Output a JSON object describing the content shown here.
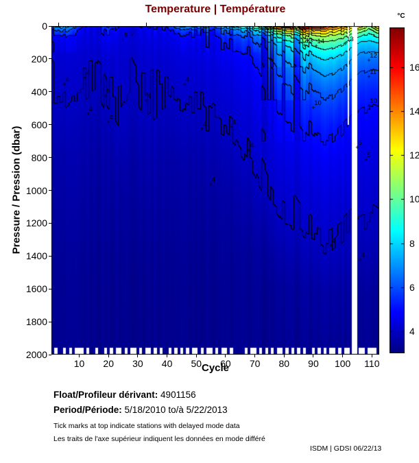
{
  "title": "Temperature | Température",
  "colors": {
    "title": "#7a0000",
    "text": "#000000",
    "missing": "#ffffff"
  },
  "colorbar": {
    "unit_label": "°C",
    "ticks": [
      4,
      6,
      8,
      10,
      12,
      14,
      16
    ],
    "cmin": 3.0,
    "cmax": 17.8
  },
  "axes": {
    "x": {
      "label": "Cycle",
      "ticks": [
        10,
        20,
        30,
        40,
        50,
        60,
        70,
        80,
        90,
        100,
        110
      ]
    },
    "y": {
      "label": "Pressure / Pression (dbar)",
      "ticks": [
        0,
        200,
        400,
        600,
        800,
        1000,
        1200,
        1400,
        1600,
        1800,
        2000
      ]
    }
  },
  "footer": {
    "float_label": "Float/Profileur dérivant:",
    "float_value": "4901156",
    "period_label": "Period/Période:",
    "period_value": "5/18/2010  to/à  5/22/2013",
    "note_en": "Tick marks at top indicate stations with delayed mode data",
    "note_fr": "Les traits de l'axe supérieur indiquent les données en mode différé",
    "credit": "ISDM | GDSI  06/22/13"
  },
  "chart_data": {
    "type": "heatmap",
    "title": "Temperature | Température",
    "xlabel": "Cycle",
    "ylabel": "Pressure / Pression (dbar)",
    "x_range": [
      1,
      112
    ],
    "y_range": [
      0,
      2000
    ],
    "color_range": [
      3.0,
      17.8
    ],
    "colormap": "jet",
    "colorbar_unit": "°C",
    "contour_levels": [
      4,
      5,
      6,
      7,
      8,
      9,
      10,
      11,
      12,
      13,
      14,
      15,
      16
    ],
    "grid": {
      "cycles": [
        1,
        4,
        8,
        12,
        16,
        20,
        24,
        28,
        32,
        36,
        40,
        44,
        48,
        52,
        56,
        60,
        64,
        68,
        72,
        76,
        80,
        84,
        88,
        92,
        96,
        100,
        102,
        106,
        109,
        112
      ],
      "pressures": [
        0,
        25,
        60,
        100,
        150,
        200,
        300,
        400,
        500,
        600,
        800,
        1000,
        1200,
        1400,
        1600,
        2000
      ],
      "temperatures": [
        [
          6.5,
          5.5,
          4.6,
          4.3,
          4.2,
          4.1,
          4.05,
          4.0,
          3.9,
          3.8,
          3.6,
          3.5,
          3.4,
          3.3,
          3.25,
          3.2
        ],
        [
          7.5,
          6.0,
          4.8,
          4.4,
          4.25,
          4.15,
          4.05,
          4.0,
          3.9,
          3.8,
          3.6,
          3.5,
          3.4,
          3.3,
          3.25,
          3.2
        ],
        [
          6.0,
          5.0,
          4.5,
          4.35,
          4.2,
          4.1,
          4.0,
          3.95,
          3.85,
          3.75,
          3.6,
          3.5,
          3.4,
          3.3,
          3.25,
          3.2
        ],
        [
          4.8,
          4.5,
          4.4,
          4.3,
          4.2,
          4.1,
          4.05,
          3.95,
          3.85,
          3.75,
          3.6,
          3.5,
          3.4,
          3.3,
          3.25,
          3.2
        ],
        [
          4.6,
          4.4,
          4.35,
          4.25,
          4.15,
          4.1,
          4.0,
          3.9,
          3.8,
          3.7,
          3.55,
          3.45,
          3.38,
          3.3,
          3.25,
          3.2
        ],
        [
          6.2,
          5.4,
          4.9,
          4.6,
          4.4,
          4.2,
          4.1,
          4.05,
          3.95,
          3.8,
          3.6,
          3.5,
          3.4,
          3.3,
          3.25,
          3.2
        ],
        [
          4.7,
          4.45,
          4.35,
          4.3,
          4.2,
          4.15,
          4.1,
          4.05,
          4.0,
          3.95,
          3.7,
          3.5,
          3.4,
          3.3,
          3.25,
          3.2
        ],
        [
          4.6,
          4.4,
          4.3,
          4.25,
          4.2,
          4.1,
          4.05,
          4.0,
          3.9,
          3.8,
          3.6,
          3.5,
          3.4,
          3.3,
          3.25,
          3.2
        ],
        [
          5.2,
          4.7,
          4.5,
          4.4,
          4.3,
          4.2,
          4.1,
          4.05,
          4.0,
          3.9,
          3.7,
          3.55,
          3.42,
          3.32,
          3.25,
          3.2
        ],
        [
          4.9,
          4.6,
          4.45,
          4.35,
          4.25,
          4.15,
          4.08,
          4.02,
          3.95,
          3.85,
          3.65,
          3.5,
          3.4,
          3.3,
          3.25,
          3.2
        ],
        [
          5.5,
          4.8,
          4.5,
          4.4,
          4.3,
          4.2,
          4.1,
          4.0,
          3.9,
          3.8,
          3.6,
          3.5,
          3.4,
          3.3,
          3.25,
          3.2
        ],
        [
          7.0,
          5.5,
          4.8,
          4.55,
          4.4,
          4.3,
          4.15,
          4.05,
          3.95,
          3.85,
          3.62,
          3.5,
          3.4,
          3.3,
          3.25,
          3.2
        ],
        [
          7.5,
          5.8,
          5.0,
          4.7,
          4.5,
          4.35,
          4.2,
          4.1,
          4.0,
          3.9,
          3.65,
          3.5,
          3.4,
          3.3,
          3.25,
          3.2
        ],
        [
          7.0,
          5.6,
          5.0,
          4.7,
          4.55,
          4.4,
          4.25,
          4.12,
          4.02,
          3.92,
          3.7,
          3.52,
          3.4,
          3.3,
          3.25,
          3.2
        ],
        [
          6.5,
          5.5,
          5.0,
          4.75,
          4.6,
          4.45,
          4.3,
          4.18,
          4.08,
          3.95,
          3.72,
          3.55,
          3.42,
          3.3,
          3.25,
          3.2
        ],
        [
          7.5,
          6.0,
          5.3,
          5.0,
          4.7,
          4.55,
          4.35,
          4.22,
          4.1,
          4.0,
          3.75,
          3.55,
          3.42,
          3.32,
          3.25,
          3.2
        ],
        [
          8.5,
          6.5,
          5.6,
          5.2,
          4.9,
          4.7,
          4.45,
          4.3,
          4.18,
          4.08,
          3.85,
          3.6,
          3.45,
          3.32,
          3.25,
          3.2
        ],
        [
          9.0,
          7.0,
          6.0,
          5.5,
          5.1,
          4.85,
          4.6,
          4.45,
          4.3,
          4.18,
          3.98,
          3.7,
          3.5,
          3.35,
          3.27,
          3.2
        ],
        [
          10.5,
          8.0,
          6.6,
          6.0,
          5.5,
          5.2,
          4.9,
          4.65,
          4.5,
          4.35,
          4.1,
          3.9,
          3.6,
          3.4,
          3.28,
          3.2
        ],
        [
          13.5,
          9.5,
          7.5,
          6.5,
          6.0,
          5.6,
          5.2,
          4.9,
          4.7,
          4.5,
          4.25,
          4.05,
          3.8,
          3.5,
          3.3,
          3.2
        ],
        [
          14.5,
          11.0,
          8.5,
          7.2,
          6.5,
          6.0,
          5.5,
          5.1,
          4.85,
          4.65,
          4.35,
          4.12,
          3.9,
          3.6,
          3.35,
          3.22
        ],
        [
          15.0,
          11.5,
          9.0,
          7.8,
          7.0,
          6.4,
          5.8,
          5.3,
          5.0,
          4.75,
          4.4,
          4.15,
          3.95,
          3.65,
          3.4,
          3.22
        ],
        [
          16.8,
          13.0,
          10.5,
          9.0,
          8.0,
          7.2,
          6.3,
          5.7,
          5.3,
          5.0,
          4.55,
          4.25,
          4.05,
          3.75,
          3.45,
          3.25
        ],
        [
          16.5,
          13.5,
          11.2,
          9.8,
          8.8,
          8.0,
          6.9,
          6.1,
          5.6,
          5.2,
          4.7,
          4.35,
          4.1,
          3.85,
          3.5,
          3.25
        ],
        [
          14.8,
          12.8,
          11.0,
          9.8,
          8.8,
          8.0,
          7.0,
          6.2,
          5.7,
          5.25,
          4.7,
          4.35,
          4.12,
          3.9,
          3.55,
          3.27
        ],
        [
          14.2,
          12.2,
          10.5,
          9.3,
          8.4,
          7.6,
          6.6,
          5.9,
          5.4,
          5.05,
          4.6,
          4.3,
          4.05,
          3.8,
          3.5,
          3.25
        ],
        [
          13.8,
          11.8,
          10.0,
          8.9,
          8.0,
          7.3,
          6.4,
          5.7,
          5.3,
          4.95,
          4.55,
          4.25,
          4.0,
          3.78,
          3.48,
          3.25
        ],
        [
          13.5,
          11.0,
          9.2,
          8.0,
          7.2,
          6.6,
          5.9,
          5.4,
          5.05,
          4.8,
          4.45,
          4.2,
          4.0,
          3.75,
          3.45,
          3.25
        ],
        [
          10.5,
          9.5,
          8.6,
          7.8,
          7.1,
          6.5,
          5.8,
          5.3,
          5.0,
          4.75,
          4.4,
          4.18,
          3.98,
          3.72,
          3.45,
          3.25
        ],
        [
          13.8,
          11.5,
          9.5,
          8.2,
          7.3,
          6.6,
          5.9,
          5.4,
          5.05,
          4.8,
          4.45,
          4.2,
          4.0,
          3.75,
          3.45,
          3.25
        ]
      ]
    },
    "missing_columns": [
      {
        "from": 103.1,
        "to": 105.1,
        "max_pressure": 2000
      },
      {
        "from": 101.7,
        "to": 102.2,
        "max_pressure": 600
      }
    ],
    "shallow_profile_cycles": [
      2,
      5,
      7,
      9,
      10,
      11,
      13,
      16,
      19,
      21,
      23,
      24,
      26,
      28,
      29,
      31,
      33,
      34,
      36,
      38,
      41,
      43,
      45,
      47,
      49,
      50,
      52,
      54,
      55,
      57,
      59,
      60,
      62,
      67,
      69,
      70,
      72,
      74,
      76,
      78,
      79,
      81,
      83,
      85,
      87,
      90,
      92,
      94,
      96,
      97,
      99,
      101,
      102,
      106,
      107,
      109,
      110,
      111
    ],
    "delayed_mode_tick_cycles": [
      3,
      33,
      70,
      77,
      80,
      83,
      87,
      104,
      110
    ],
    "contour_labels": [
      {
        "t": "4",
        "c": 6,
        "p": 330
      },
      {
        "t": "4",
        "c": 13,
        "p": 290
      },
      {
        "t": "4",
        "c": 14,
        "p": 510
      },
      {
        "t": "4",
        "c": 21,
        "p": 560
      },
      {
        "t": "5",
        "c": 20,
        "p": 400
      },
      {
        "t": "6",
        "c": 26,
        "p": 60
      },
      {
        "t": "4",
        "c": 34,
        "p": 430
      },
      {
        "t": "4",
        "c": 47,
        "p": 330
      },
      {
        "t": "4",
        "c": 53,
        "p": 600
      },
      {
        "t": "4",
        "c": 56,
        "p": 940
      },
      {
        "t": "4",
        "c": 63,
        "p": 590
      },
      {
        "t": "4",
        "c": 69,
        "p": 730
      },
      {
        "t": "10",
        "c": 91,
        "p": 470
      },
      {
        "t": "4",
        "c": 97,
        "p": 1310
      },
      {
        "t": "4",
        "c": 107,
        "p": 1400
      },
      {
        "t": "14",
        "c": 92,
        "p": 95
      },
      {
        "t": "13",
        "c": 88,
        "p": 90
      },
      {
        "t": "13",
        "c": 102,
        "p": 85
      },
      {
        "t": "12",
        "c": 110,
        "p": 185
      },
      {
        "t": "11",
        "c": 110,
        "p": 285
      },
      {
        "t": "10",
        "c": 110,
        "p": 460
      },
      {
        "t": "6",
        "c": 106,
        "p": 715
      },
      {
        "t": "5",
        "c": 109,
        "p": 790
      }
    ]
  }
}
